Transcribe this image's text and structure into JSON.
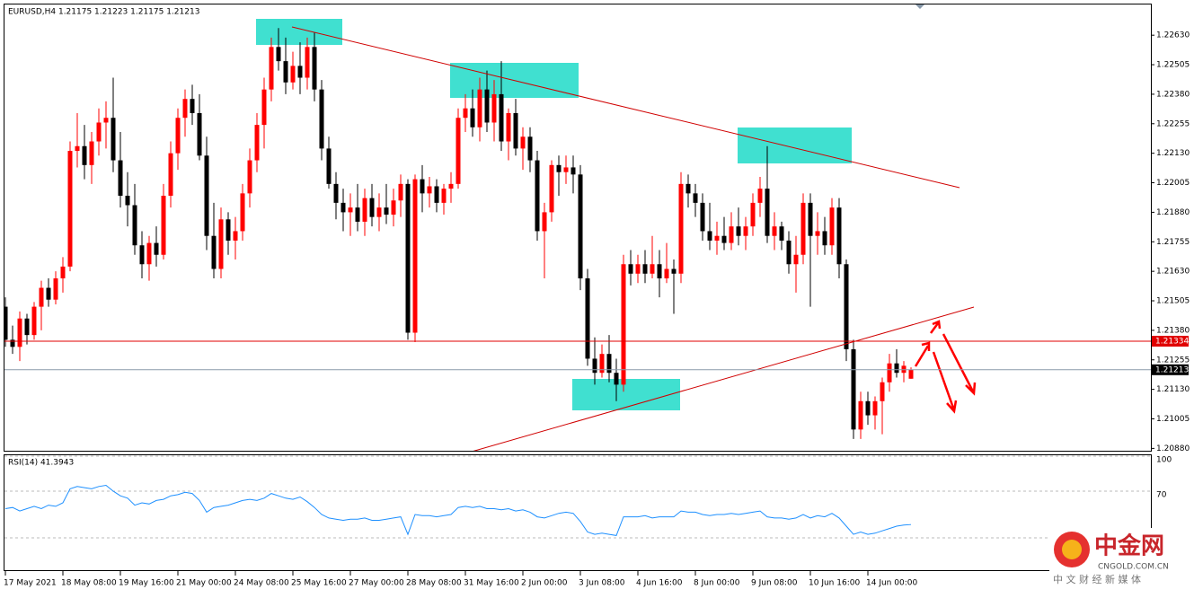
{
  "chart_data": [
    {
      "type": "candlestick",
      "title": "EURUSD,H4  1.21175 1.21223 1.21175 1.21213",
      "up_color": "#ff0000",
      "down_color": "#000000",
      "ylim": [
        1.2087,
        1.2276
      ],
      "yticks": [
        {
          "value": 1.2263,
          "label": "1.22630"
        },
        {
          "value": 1.22505,
          "label": "1.22505"
        },
        {
          "value": 1.2238,
          "label": "1.22380"
        },
        {
          "value": 1.22255,
          "label": "1.22255"
        },
        {
          "value": 1.2213,
          "label": "1.22130"
        },
        {
          "value": 1.22005,
          "label": "1.22005"
        },
        {
          "value": 1.2188,
          "label": "1.21880"
        },
        {
          "value": 1.21755,
          "label": "1.21755"
        },
        {
          "value": 1.2163,
          "label": "1.21630"
        },
        {
          "value": 1.21505,
          "label": "1.21505"
        },
        {
          "value": 1.2138,
          "label": "1.21380"
        },
        {
          "value": 1.21255,
          "label": "1.21255"
        },
        {
          "value": 1.2113,
          "label": "1.21130"
        },
        {
          "value": 1.21005,
          "label": "1.21005"
        },
        {
          "value": 1.2088,
          "label": "1.20880"
        }
      ],
      "price_lines": [
        {
          "value": 1.21334,
          "color": "#e00000"
        },
        {
          "value": 1.21213,
          "color": "#000000"
        }
      ],
      "time_labels": [
        "17 May 2021",
        "18 May 08:00",
        "19 May 16:00",
        "21 May 00:00",
        "24 May 08:00",
        "25 May 16:00",
        "27 May 00:00",
        "28 May 08:00",
        "31 May 16:00",
        "2 Jun 00:00",
        "3 Jun 08:00",
        "4 Jun 16:00",
        "8 Jun 00:00",
        "9 Jun 08:00",
        "10 Jun 16:00",
        "14 Jun 00:00"
      ],
      "ohlc": [
        [
          1.2148,
          1.2152,
          1.2131,
          1.2134
        ],
        [
          1.2134,
          1.214,
          1.2128,
          1.2131
        ],
        [
          1.2131,
          1.2146,
          1.2125,
          1.2143
        ],
        [
          1.2143,
          1.2145,
          1.2132,
          1.2136
        ],
        [
          1.2136,
          1.215,
          1.2134,
          1.2148
        ],
        [
          1.2148,
          1.2159,
          1.2138,
          1.2156
        ],
        [
          1.2156,
          1.216,
          1.2148,
          1.2151
        ],
        [
          1.2151,
          1.2163,
          1.2149,
          1.216
        ],
        [
          1.216,
          1.2169,
          1.2154,
          1.2165
        ],
        [
          1.2165,
          1.2218,
          1.2163,
          1.2214
        ],
        [
          1.2214,
          1.223,
          1.2207,
          1.2216
        ],
        [
          1.2216,
          1.2225,
          1.2202,
          1.2208
        ],
        [
          1.2208,
          1.2222,
          1.22,
          1.2218
        ],
        [
          1.2218,
          1.2232,
          1.2212,
          1.2226
        ],
        [
          1.2226,
          1.2235,
          1.2215,
          1.2228
        ],
        [
          1.2228,
          1.2245,
          1.2205,
          1.221
        ],
        [
          1.221,
          1.2222,
          1.219,
          1.2195
        ],
        [
          1.2195,
          1.2205,
          1.2182,
          1.2191
        ],
        [
          1.2191,
          1.22,
          1.217,
          1.2174
        ],
        [
          1.2174,
          1.218,
          1.216,
          1.2166
        ],
        [
          1.2166,
          1.2178,
          1.2159,
          1.2175
        ],
        [
          1.2175,
          1.2182,
          1.2165,
          1.217
        ],
        [
          1.217,
          1.22,
          1.2168,
          1.2195
        ],
        [
          1.2195,
          1.2218,
          1.219,
          1.2213
        ],
        [
          1.2213,
          1.2232,
          1.2206,
          1.2228
        ],
        [
          1.2228,
          1.224,
          1.222,
          1.2236
        ],
        [
          1.2236,
          1.2242,
          1.2225,
          1.223
        ],
        [
          1.223,
          1.2238,
          1.221,
          1.2212
        ],
        [
          1.2212,
          1.222,
          1.2172,
          1.2178
        ],
        [
          1.2178,
          1.2192,
          1.216,
          1.2164
        ],
        [
          1.2164,
          1.219,
          1.216,
          1.2185
        ],
        [
          1.2185,
          1.2188,
          1.217,
          1.2176
        ],
        [
          1.2176,
          1.2186,
          1.2168,
          1.218
        ],
        [
          1.218,
          1.22,
          1.2176,
          1.2196
        ],
        [
          1.2196,
          1.2215,
          1.219,
          1.221
        ],
        [
          1.221,
          1.223,
          1.2205,
          1.2225
        ],
        [
          1.2225,
          1.2245,
          1.2215,
          1.224
        ],
        [
          1.224,
          1.2262,
          1.2235,
          1.2258
        ],
        [
          1.2258,
          1.2266,
          1.2248,
          1.2252
        ],
        [
          1.2252,
          1.2262,
          1.2238,
          1.2243
        ],
        [
          1.2243,
          1.2256,
          1.224,
          1.225
        ],
        [
          1.225,
          1.226,
          1.2238,
          1.2245
        ],
        [
          1.2245,
          1.2262,
          1.224,
          1.2258
        ],
        [
          1.2258,
          1.2264,
          1.2235,
          1.224
        ],
        [
          1.224,
          1.2244,
          1.221,
          1.2215
        ],
        [
          1.2215,
          1.222,
          1.2198,
          1.22
        ],
        [
          1.22,
          1.2205,
          1.2185,
          1.2192
        ],
        [
          1.2192,
          1.2198,
          1.218,
          1.2188
        ],
        [
          1.2188,
          1.2196,
          1.2178,
          1.219
        ],
        [
          1.219,
          1.22,
          1.218,
          1.2184
        ],
        [
          1.2184,
          1.2198,
          1.2178,
          1.2194
        ],
        [
          1.2194,
          1.22,
          1.2182,
          1.2186
        ],
        [
          1.2186,
          1.2196,
          1.218,
          1.219
        ],
        [
          1.219,
          1.22,
          1.2183,
          1.2187
        ],
        [
          1.2187,
          1.2198,
          1.2182,
          1.2193
        ],
        [
          1.2193,
          1.2204,
          1.2186,
          1.22
        ],
        [
          1.22,
          1.2202,
          1.2134,
          1.2137
        ],
        [
          1.2137,
          1.2204,
          1.2133,
          1.2202
        ],
        [
          1.2202,
          1.2208,
          1.2188,
          1.2196
        ],
        [
          1.2196,
          1.2203,
          1.219,
          1.2199
        ],
        [
          1.2199,
          1.2202,
          1.2188,
          1.2192
        ],
        [
          1.2192,
          1.22,
          1.2187,
          1.2198
        ],
        [
          1.2198,
          1.2205,
          1.2192,
          1.22
        ],
        [
          1.22,
          1.2232,
          1.2198,
          1.2228
        ],
        [
          1.2228,
          1.2238,
          1.2222,
          1.2232
        ],
        [
          1.2232,
          1.224,
          1.222,
          1.2224
        ],
        [
          1.2224,
          1.2245,
          1.2218,
          1.224
        ],
        [
          1.224,
          1.2248,
          1.2222,
          1.2226
        ],
        [
          1.2226,
          1.2244,
          1.2218,
          1.2238
        ],
        [
          1.2238,
          1.2252,
          1.2214,
          1.2218
        ],
        [
          1.2218,
          1.2232,
          1.221,
          1.223
        ],
        [
          1.223,
          1.2236,
          1.2212,
          1.2215
        ],
        [
          1.2215,
          1.2224,
          1.2206,
          1.222
        ],
        [
          1.222,
          1.2224,
          1.2205,
          1.221
        ],
        [
          1.221,
          1.2214,
          1.2176,
          1.218
        ],
        [
          1.218,
          1.2192,
          1.216,
          1.2188
        ],
        [
          1.2188,
          1.221,
          1.2184,
          1.2208
        ],
        [
          1.2208,
          1.2212,
          1.2195,
          1.2205
        ],
        [
          1.2205,
          1.2212,
          1.22,
          1.2207
        ],
        [
          1.2207,
          1.2212,
          1.2196,
          1.2204
        ],
        [
          1.2204,
          1.2208,
          1.2155,
          1.216
        ],
        [
          1.216,
          1.2164,
          1.2123,
          1.2126
        ],
        [
          1.2126,
          1.2135,
          1.2115,
          1.212
        ],
        [
          1.212,
          1.2132,
          1.2118,
          1.2128
        ],
        [
          1.2128,
          1.2136,
          1.2116,
          1.212
        ],
        [
          1.212,
          1.2126,
          1.2108,
          1.2115
        ],
        [
          1.2115,
          1.217,
          1.2112,
          1.2166
        ],
        [
          1.2166,
          1.2172,
          1.2157,
          1.2162
        ],
        [
          1.2162,
          1.217,
          1.2158,
          1.2166
        ],
        [
          1.2166,
          1.2172,
          1.2158,
          1.2162
        ],
        [
          1.2162,
          1.2178,
          1.216,
          1.2166
        ],
        [
          1.2166,
          1.2172,
          1.2152,
          1.216
        ],
        [
          1.216,
          1.2175,
          1.2158,
          1.2164
        ],
        [
          1.2164,
          1.2168,
          1.2145,
          1.2162
        ],
        [
          1.2162,
          1.2205,
          1.2158,
          1.22
        ],
        [
          1.22,
          1.2204,
          1.219,
          1.2196
        ],
        [
          1.2196,
          1.22,
          1.2186,
          1.2192
        ],
        [
          1.2192,
          1.2196,
          1.2176,
          1.218
        ],
        [
          1.218,
          1.2192,
          1.2172,
          1.2176
        ],
        [
          1.2176,
          1.2184,
          1.217,
          1.2178
        ],
        [
          1.2178,
          1.2186,
          1.2172,
          1.2175
        ],
        [
          1.2175,
          1.2188,
          1.2172,
          1.2182
        ],
        [
          1.2182,
          1.219,
          1.2174,
          1.2178
        ],
        [
          1.2178,
          1.2186,
          1.2172,
          1.2182
        ],
        [
          1.2182,
          1.2196,
          1.2178,
          1.2192
        ],
        [
          1.2192,
          1.2203,
          1.2186,
          1.2198
        ],
        [
          1.2198,
          1.2216,
          1.2175,
          1.2178
        ],
        [
          1.2178,
          1.2188,
          1.2172,
          1.2182
        ],
        [
          1.2182,
          1.2184,
          1.2172,
          1.2176
        ],
        [
          1.2176,
          1.218,
          1.2162,
          1.2166
        ],
        [
          1.2166,
          1.2178,
          1.2154,
          1.217
        ],
        [
          1.217,
          1.2196,
          1.2166,
          1.2192
        ],
        [
          1.2192,
          1.2196,
          1.2148,
          1.2178
        ],
        [
          1.2178,
          1.2188,
          1.217,
          1.218
        ],
        [
          1.218,
          1.2186,
          1.217,
          1.2174
        ],
        [
          1.2174,
          1.2194,
          1.217,
          1.219
        ],
        [
          1.219,
          1.2194,
          1.216,
          1.2166
        ],
        [
          1.2166,
          1.2168,
          1.2125,
          1.213
        ],
        [
          1.213,
          1.2134,
          1.2092,
          1.2096
        ],
        [
          1.2096,
          1.2112,
          1.2092,
          1.2108
        ],
        [
          1.2108,
          1.2112,
          1.2098,
          1.2102
        ],
        [
          1.2102,
          1.211,
          1.2096,
          1.2108
        ],
        [
          1.2108,
          1.2118,
          1.2094,
          1.2116
        ],
        [
          1.2116,
          1.2128,
          1.2112,
          1.2124
        ],
        [
          1.2124,
          1.213,
          1.2118,
          1.212
        ],
        [
          1.212,
          1.2125,
          1.2116,
          1.2123
        ],
        [
          1.21175,
          1.21223,
          1.21175,
          1.21213
        ]
      ]
    },
    {
      "type": "line",
      "title": "RSI(14) 41.3943",
      "color": "#1e90ff",
      "ylim": [
        0,
        100
      ],
      "yticks": [
        100,
        70,
        30
      ],
      "values": [
        55,
        56,
        53,
        55,
        57,
        55,
        58,
        57,
        60,
        72,
        74,
        73,
        72,
        74,
        75,
        70,
        66,
        64,
        58,
        60,
        59,
        62,
        63,
        66,
        67,
        69,
        68,
        62,
        52,
        56,
        57,
        58,
        60,
        62,
        63,
        62,
        64,
        68,
        66,
        64,
        63,
        65,
        61,
        56,
        50,
        47,
        46,
        45,
        46,
        46,
        47,
        45,
        45,
        46,
        47,
        48,
        33,
        50,
        49,
        49,
        48,
        49,
        50,
        56,
        57,
        56,
        57,
        55,
        55,
        54,
        55,
        53,
        54,
        52,
        48,
        47,
        49,
        51,
        52,
        51,
        44,
        35,
        33,
        34,
        33,
        32,
        48,
        48,
        48,
        49,
        47,
        48,
        48,
        48,
        53,
        52,
        52,
        50,
        49,
        50,
        50,
        51,
        50,
        51,
        52,
        53,
        48,
        47,
        47,
        46,
        47,
        50,
        47,
        49,
        48,
        51,
        47,
        40,
        33,
        35,
        33,
        34,
        36,
        38,
        40,
        41,
        41.3943
      ]
    }
  ],
  "watermark": {
    "name": "中金网",
    "site": "CNGOLD.COM.CN",
    "slogan": "中 文 财 经 新 媒 体"
  }
}
